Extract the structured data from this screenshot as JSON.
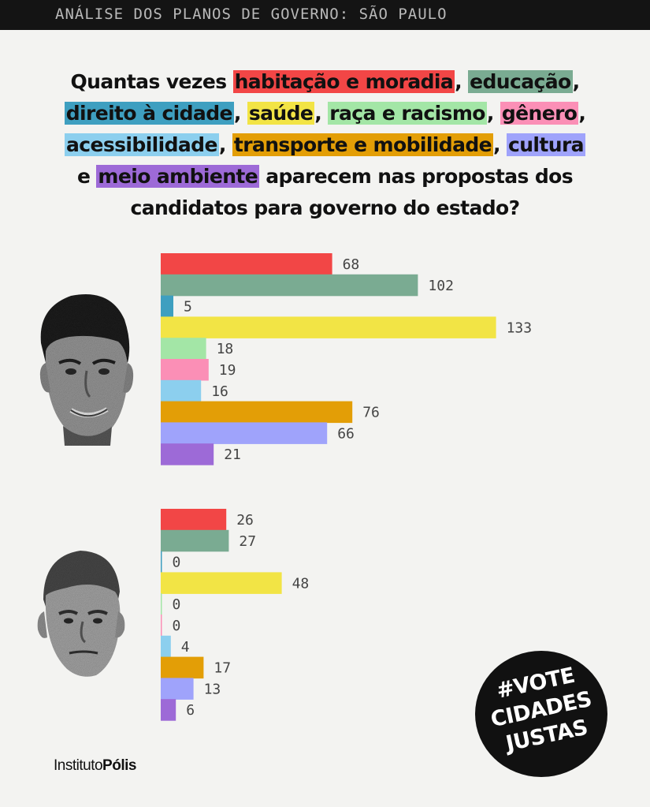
{
  "header": {
    "label": "ANÁLISE DOS PLANOS DE GOVERNO: SÃO PAULO"
  },
  "title": {
    "p1": "Quantas vezes ",
    "t1": "habitação e moradia",
    "s1": ", ",
    "t2": "educação",
    "s2": ",",
    "t3": "direito à cidade",
    "s3": ", ",
    "t4": "saúde",
    "s4": ", ",
    "t5": "raça e racismo",
    "s5": ", ",
    "t6": "gênero",
    "s6": ",",
    "t7": "acessibilidade",
    "s7": ", ",
    "t8": "transporte e mobilidade",
    "s8": ", ",
    "t9": "cultura",
    "p2": "e ",
    "t10": "meio ambiente",
    "p3": " aparecem nas propostas dos",
    "p4": "candidatos para governo do estado?"
  },
  "colors": {
    "habitacao": "#f24646",
    "educacao": "#7aab92",
    "direito": "#3e9fc0",
    "saude": "#f2e445",
    "raca": "#a3e6a6",
    "genero": "#fb8fb6",
    "acessibilidade": "#8ccfee",
    "transporte": "#e39e06",
    "cultura": "#9fa3fb",
    "meio_ambiente": "#9d6ad7"
  },
  "chart_data": [
    {
      "type": "bar",
      "orientation": "horizontal",
      "candidate_portrait": "portrait-1",
      "categories": [
        "habitação e moradia",
        "educação",
        "direito à cidade",
        "saúde",
        "raça e racismo",
        "gênero",
        "acessibilidade",
        "transporte e mobilidade",
        "cultura",
        "meio ambiente"
      ],
      "values": [
        68,
        102,
        5,
        133,
        18,
        19,
        16,
        76,
        66,
        21
      ]
    },
    {
      "type": "bar",
      "orientation": "horizontal",
      "candidate_portrait": "portrait-2",
      "categories": [
        "habitação e moradia",
        "educação",
        "direito à cidade",
        "saúde",
        "raça e racismo",
        "gênero",
        "acessibilidade",
        "transporte e mobilidade",
        "cultura",
        "meio ambiente"
      ],
      "values": [
        26,
        27,
        0,
        48,
        0,
        0,
        4,
        17,
        13,
        6
      ]
    }
  ],
  "footer": {
    "logo_regular": "Instituto",
    "logo_bold": "Pólis"
  },
  "badge": {
    "line1": "#VOTE",
    "line2": "CIDADES",
    "line3": "JUSTAS"
  }
}
